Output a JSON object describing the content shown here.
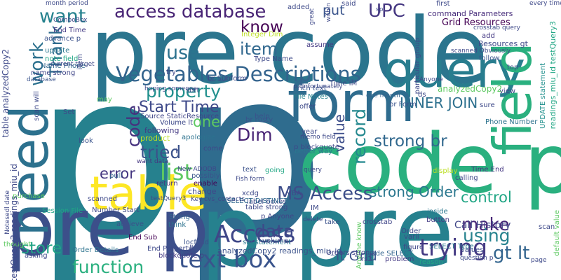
{
  "words": [
    {
      "text": "p",
      "color": "#26818e"
    },
    {
      "text": "p",
      "color": "#2f6c8e"
    },
    {
      "text": "pre code",
      "color": "#2b758e"
    },
    {
      "text": "code pre",
      "color": "#2ab07f"
    },
    {
      "text": "p pre",
      "color": "#26818e"
    },
    {
      "text": "pre p",
      "color": "#3c4f8a"
    },
    {
      "text": "query",
      "color": "#287d8e"
    },
    {
      "text": "form",
      "color": "#2f6c8e"
    },
    {
      "text": "table",
      "color": "#fde725"
    },
    {
      "text": "need",
      "color": "#2c718e"
    },
    {
      "text": "field",
      "color": "#2ab07f"
    },
    {
      "text": "Vegetables Descriptions",
      "color": "#33638d"
    },
    {
      "text": "access database",
      "color": "#482475"
    },
    {
      "text": "UPC",
      "color": "#453781"
    },
    {
      "text": "text box",
      "color": "#3a548c"
    },
    {
      "text": "Access",
      "color": "#3f4788"
    },
    {
      "text": "MS Access",
      "color": "#3d4e8a"
    },
    {
      "text": "function",
      "color": "#2ab07f"
    },
    {
      "text": "trying",
      "color": "#443a83"
    },
    {
      "text": "list",
      "color": "#5ec962"
    },
    {
      "text": "item",
      "color": "#31688e"
    },
    {
      "text": "want",
      "color": "#26828e"
    },
    {
      "text": "work",
      "color": "#2c718e"
    },
    {
      "text": "know",
      "color": "#440154"
    },
    {
      "text": "Thank",
      "color": "#2f6c8e"
    },
    {
      "text": "use",
      "color": "#2c728e"
    },
    {
      "text": "property",
      "color": "#21908d"
    },
    {
      "text": "Start Time",
      "color": "#3e4989"
    },
    {
      "text": "code",
      "color": "#46327e"
    },
    {
      "text": "Dim",
      "color": "#482475"
    },
    {
      "text": "tried",
      "color": "#3b528b"
    },
    {
      "text": "one",
      "color": "#5ec962"
    },
    {
      "text": "record",
      "color": "#23888e"
    },
    {
      "text": "value",
      "color": "#3d4e8a"
    },
    {
      "text": "INNER JOIN",
      "color": "#2d708e"
    },
    {
      "text": "strong br",
      "color": "#31688e"
    },
    {
      "text": "error",
      "color": "#453781"
    },
    {
      "text": "data",
      "color": "#3e4989"
    },
    {
      "text": "control",
      "color": "#21a685"
    },
    {
      "text": "make",
      "color": "#482878"
    },
    {
      "text": "using",
      "color": "#26828e"
    },
    {
      "text": "gt lt",
      "color": "#32648e"
    },
    {
      "text": "store",
      "color": "#20a386"
    },
    {
      "text": "strong Order",
      "color": "#2a778e"
    },
    {
      "text": "lt Grid",
      "color": "#3b528b"
    },
    {
      "text": "put",
      "color": "#3a548c"
    },
    {
      "text": "Grid Resources",
      "color": "#440154"
    },
    {
      "text": "command Parameters",
      "color": "#472d7b"
    },
    {
      "text": "Call History",
      "color": "#404688"
    },
    {
      "text": "analyzedCopy2 readings_miu_id",
      "color": "#3b528b"
    }
  ],
  "small_words": [
    {
      "text": "month period",
      "color": "#3e4a89"
    },
    {
      "text": "ComboBox",
      "color": "#3e4a89"
    },
    {
      "text": "End Time",
      "color": "#443b84"
    },
    {
      "text": "advance p",
      "color": "#3b528b"
    },
    {
      "text": "update",
      "color": "#2a778e"
    },
    {
      "text": "note field",
      "color": "#22a785"
    },
    {
      "text": "Name Phone",
      "color": "#31688e"
    },
    {
      "text": "name strong",
      "color": "#404688"
    },
    {
      "text": "database",
      "color": "#3a548c"
    },
    {
      "text": "Source StaticResource",
      "color": "#404688"
    },
    {
      "text": "Volume lt",
      "color": "#3e4989"
    },
    {
      "text": "following",
      "color": "#443983"
    },
    {
      "text": "product",
      "color": "#bddf26"
    },
    {
      "text": "apologize",
      "color": "#2c728e"
    },
    {
      "text": "want data",
      "color": "#453781"
    },
    {
      "text": "pull",
      "color": "#33638d"
    },
    {
      "text": "return",
      "color": "#453781"
    },
    {
      "text": "change",
      "color": "#3e4989"
    },
    {
      "text": "enable",
      "color": "#440154"
    },
    {
      "text": "Number Start",
      "color": "#3e4989"
    },
    {
      "text": "Session File",
      "color": "#20a386"
    },
    {
      "text": "achieve",
      "color": "#3b528b"
    },
    {
      "text": "String",
      "color": "#31688e"
    },
    {
      "text": "think",
      "color": "#2c728e"
    },
    {
      "text": "End Sub",
      "color": "#440154"
    },
    {
      "text": "End Property",
      "color": "#3e4989"
    },
    {
      "text": "Order Details",
      "color": "#2c728e"
    },
    {
      "text": "blockquote p",
      "color": "#443b84"
    },
    {
      "text": "locfield",
      "color": "#3b528b"
    },
    {
      "text": "sql statement",
      "color": "#2a778e"
    },
    {
      "text": "Anyone know",
      "color": "#5ec962"
    },
    {
      "text": "Orders strong",
      "color": "#404688"
    },
    {
      "text": "code SELECT",
      "color": "#32648e"
    },
    {
      "text": "SELECT Type",
      "color": "#2a778e"
    },
    {
      "text": "problem",
      "color": "#443983"
    },
    {
      "text": "figure",
      "color": "#404688"
    },
    {
      "text": "reason",
      "color": "#22a785"
    },
    {
      "text": "File Notes",
      "color": "#26828e"
    },
    {
      "text": "rich text",
      "color": "#3a548c"
    },
    {
      "text": "label boxes",
      "color": "#3e4a89"
    },
    {
      "text": "table strong",
      "color": "#3e4989"
    },
    {
      "text": "SELECT DISTINCT",
      "color": "#31688e"
    },
    {
      "text": "p Anyone",
      "color": "#404688"
    },
    {
      "text": "take",
      "color": "#3b528b"
    },
    {
      "text": "crosstab",
      "color": "#404688"
    },
    {
      "text": "button",
      "color": "#443b84"
    },
    {
      "text": "inside",
      "color": "#2a778e"
    },
    {
      "text": "Time End",
      "color": "#453781"
    },
    {
      "text": "Phone Number",
      "color": "#2c728e"
    },
    {
      "text": "better way",
      "color": "#2a778e"
    },
    {
      "text": "Time IM",
      "color": "#3e4a89"
    },
    {
      "text": "one month",
      "color": "#32648e"
    },
    {
      "text": "br Form",
      "color": "#3a548c"
    },
    {
      "text": "first",
      "color": "#3e4989"
    },
    {
      "text": "add",
      "color": "#443983"
    },
    {
      "text": "Resources gt",
      "color": "#3e4989"
    },
    {
      "text": "follow",
      "color": "#3a548c"
    },
    {
      "text": "top",
      "color": "#3e4989"
    },
    {
      "text": "view",
      "color": "#3e4989"
    },
    {
      "text": "sure",
      "color": "#3e4989"
    },
    {
      "text": "added",
      "color": "#3e4a89"
    },
    {
      "text": "assume",
      "color": "#443983"
    },
    {
      "text": "Type Name",
      "color": "#3e4989"
    },
    {
      "text": "br Subform",
      "color": "#3e4989"
    },
    {
      "text": "Integer Dim",
      "color": "#bddf26"
    },
    {
      "text": "try",
      "color": "#404688"
    },
    {
      "text": "sort",
      "color": "#3e4989"
    },
    {
      "text": "help",
      "color": "#3b528b"
    },
    {
      "text": "year",
      "color": "#3e4989"
    },
    {
      "text": "going",
      "color": "#22a785"
    },
    {
      "text": "text",
      "color": "#3b528b"
    },
    {
      "text": "look",
      "color": "#3a548c"
    },
    {
      "text": "come",
      "color": "#3e4989"
    },
    {
      "text": "possibly",
      "color": "#3a548c"
    },
    {
      "text": "Set",
      "color": "#3e4989"
    },
    {
      "text": "purchase",
      "color": "#5ec962"
    },
    {
      "text": "scanned",
      "color": "#3e4989"
    },
    {
      "text": "volume",
      "color": "#3e4989"
    },
    {
      "text": "Order",
      "color": "#3e4989"
    },
    {
      "text": "asking",
      "color": "#3e4989"
    },
    {
      "text": "thought",
      "color": "#5ec962"
    },
    {
      "text": "br rusty",
      "color": "#3a548c"
    },
    {
      "text": "p blockquote",
      "color": "#3e4989"
    },
    {
      "text": "offer",
      "color": "#3e4989"
    },
    {
      "text": "calling",
      "color": "#3e4989"
    },
    {
      "text": "display",
      "color": "#bddf26"
    },
    {
      "text": "said",
      "color": "#3e4989"
    },
    {
      "text": "every time",
      "color": "#3e4989"
    },
    {
      "text": "UPDATE statement",
      "color": "#21908d"
    },
    {
      "text": "default value",
      "color": "#5ec962"
    },
    {
      "text": "sp",
      "color": "#3e4989"
    },
    {
      "text": "ds",
      "color": "#3e4989"
    },
    {
      "text": "lt",
      "color": "#3e4989"
    },
    {
      "text": "page",
      "color": "#3e4989"
    },
    {
      "text": "varii",
      "color": "#3e4989"
    },
    {
      "text": "values",
      "color": "#3e4989"
    },
    {
      "text": "rs2",
      "color": "#3e4989"
    },
    {
      "text": "scan",
      "color": "#3e4989"
    },
    {
      "text": "testQuery3 readings_miu_id",
      "color": "#3e4989"
    },
    {
      "text": "table analyzedCopy2",
      "color": "#3e4989"
    },
    {
      "text": "analyzedCopy2",
      "color": "#5ec962"
    },
    {
      "text": "readings_miu_id testQuery3",
      "color": "#22a785"
    },
    {
      "text": "crosstab query",
      "color": "#3e4989"
    },
    {
      "text": "current target",
      "color": "#3e4989"
    },
    {
      "text": "great",
      "color": "#3e4989"
    },
    {
      "text": "within",
      "color": "#3e4989"
    },
    {
      "text": "particular group",
      "color": "#3e4989"
    },
    {
      "text": "scanned Obviously",
      "color": "#3e4989"
    },
    {
      "text": "Fish form",
      "color": "#3e4989"
    },
    {
      "text": "delete",
      "color": "#3e4989"
    },
    {
      "text": "query",
      "color": "#3e4989"
    },
    {
      "text": "memo field",
      "color": "#3e4989"
    },
    {
      "text": "VBA",
      "color": "#3e4989"
    },
    {
      "text": "hoping someone",
      "color": "#3e4989"
    },
    {
      "text": "New ADODB",
      "color": "#3e4989"
    },
    {
      "text": "item",
      "color": "#3e4989"
    },
    {
      "text": "may",
      "color": "#5ec962"
    },
    {
      "text": "t",
      "color": "#3e4989"
    },
    {
      "text": "xcdg",
      "color": "#3e4989"
    },
    {
      "text": "question p",
      "color": "#3e4989"
    },
    {
      "text": "scan will",
      "color": "#3e4989"
    },
    {
      "text": "Notesedl date",
      "color": "#3e4989"
    },
    {
      "text": "testQuery3",
      "color": "#3e4989"
    },
    {
      "text": "Key cvs_contacts",
      "color": "#3e4989"
    },
    {
      "text": "p Unfortunately",
      "color": "#3e4989"
    },
    {
      "text": "IM",
      "color": "#3e4989"
    },
    {
      "text": "Anyone",
      "color": "#3e4989"
    },
    {
      "text": "recent",
      "color": "#3e4989"
    }
  ]
}
